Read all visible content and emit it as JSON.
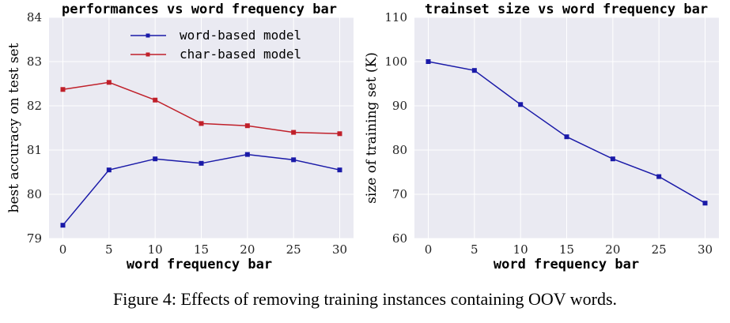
{
  "caption": "Figure 4: Effects of removing training instances containing OOV words.",
  "chart_data": [
    {
      "type": "line",
      "title": "performances vs word frequency bar",
      "xlabel": "word frequency bar",
      "ylabel": "best accuracy on test set",
      "x": [
        0,
        5,
        10,
        15,
        20,
        25,
        30
      ],
      "xlim": [
        -1.5,
        31.5
      ],
      "ylim": [
        79,
        84
      ],
      "xticks": [
        "0",
        "5",
        "10",
        "15",
        "20",
        "25",
        "30"
      ],
      "yticks": [
        "79",
        "80",
        "81",
        "82",
        "83",
        "84"
      ],
      "legend_position": "top-center",
      "series": [
        {
          "name": "word-based model",
          "color": "#1a1aa8",
          "values": [
            79.3,
            80.55,
            80.8,
            80.7,
            80.9,
            80.78,
            80.55
          ]
        },
        {
          "name": "char-based model",
          "color": "#c0202a",
          "values": [
            82.37,
            82.53,
            82.13,
            81.6,
            81.55,
            81.4,
            81.37
          ]
        }
      ]
    },
    {
      "type": "line",
      "title": "trainset size vs word frequency bar",
      "xlabel": "word frequency bar",
      "ylabel": "size of training set (K)",
      "x": [
        0,
        5,
        10,
        15,
        20,
        25,
        30
      ],
      "xlim": [
        -1.5,
        31.5
      ],
      "ylim": [
        60,
        110
      ],
      "xticks": [
        "0",
        "5",
        "10",
        "15",
        "20",
        "25",
        "30"
      ],
      "yticks": [
        "60",
        "70",
        "80",
        "90",
        "100",
        "110"
      ],
      "series": [
        {
          "name": "training set size",
          "color": "#1a1aa8",
          "values": [
            100,
            98,
            90.3,
            83,
            78,
            74,
            68
          ]
        }
      ]
    }
  ]
}
